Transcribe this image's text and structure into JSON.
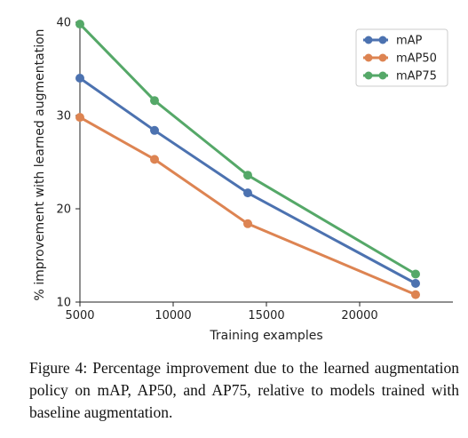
{
  "chart_data": {
    "type": "line",
    "x": [
      5000,
      9000,
      14000,
      23000
    ],
    "series": [
      {
        "name": "mAP",
        "values": [
          34.0,
          28.4,
          21.7,
          12.0
        ],
        "color": "#4c72b0"
      },
      {
        "name": "mAP50",
        "values": [
          29.8,
          25.3,
          18.4,
          10.8
        ],
        "color": "#dd8452"
      },
      {
        "name": "mAP75",
        "values": [
          39.8,
          31.6,
          23.6,
          13.0
        ],
        "color": "#55a868"
      }
    ],
    "xlabel": "Training examples",
    "ylabel": "% improvement with learned augmentation",
    "xlim": [
      5000,
      25000
    ],
    "ylim": [
      10,
      40
    ],
    "xticks": [
      5000,
      10000,
      15000,
      20000
    ],
    "yticks": [
      10,
      20,
      30,
      40
    ],
    "grid": false,
    "legend_position": "top-right"
  },
  "caption": "Figure 4: Percentage improvement due to the learned augmentation policy on mAP, AP50, and AP75, relative to models trained with baseline augmentation."
}
